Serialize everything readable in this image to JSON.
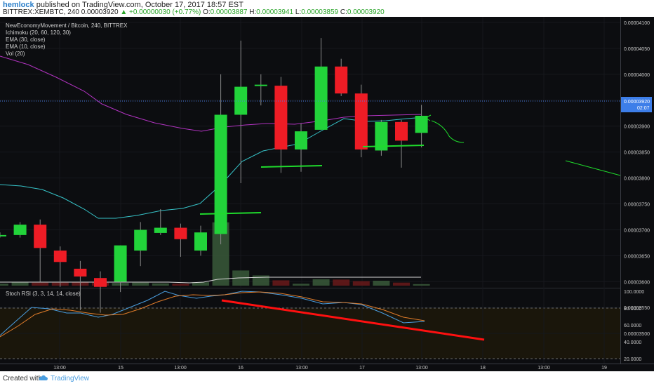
{
  "header": {
    "author": "hemlock",
    "published": "published on TradingView.com, October 17, 2017 18:57 EST",
    "symbol": "BITTREX:XEMBTC, 240",
    "price": "0.00003920",
    "change": "▲ +0.00000030 (+0.77%)",
    "o_label": "O:",
    "o_value": "0.00003887",
    "h_label": "H:",
    "h_value": "0.00003941",
    "l_label": "L:",
    "l_value": "0.00003859",
    "c_label": "C:",
    "c_value": "0.00003920"
  },
  "legend": {
    "title": "NewEconomyMovement / Bitcoin, 240, BITTREX",
    "ichimoku": "Ichimoku (20, 60, 120, 30)",
    "ema30": "EMA (30, close)",
    "ema10": "EMA (10, close)",
    "vol": "Vol (20)"
  },
  "rsi_label": "Stoch RSI (3, 3, 14, 14, close)",
  "footer": {
    "created_with": "Created with",
    "brand": "TradingView"
  },
  "colors": {
    "background": "#0c0d10",
    "up": "#22d33a",
    "down": "#ee1c25",
    "ema30": "#b133c0",
    "ema10": "#36c3c8",
    "rsi_k": "#4a9ee0",
    "rsi_d": "#e07c2a",
    "drawing_green": "#1fdb2c",
    "drawing_red": "#ff1010"
  },
  "chart_data": {
    "type": "candlestick",
    "price_axis": {
      "ticks": [
        "0.00004100",
        "0.00004050",
        "0.00004000",
        "0.00003950",
        "0.00003900",
        "0.00003850",
        "0.00003800",
        "0.00003750",
        "0.00003700",
        "0.00003650",
        "0.00003600",
        "0.00003550",
        "0.00003500"
      ],
      "last_price_label": "0.00003920",
      "time_to_close_label": "02:07"
    },
    "rsi_axis": {
      "ticks": [
        "100.0000",
        "80.0000",
        "60.0000",
        "40.0000",
        "20.0000"
      ]
    },
    "time_axis": {
      "ticks": [
        "13:00",
        "15",
        "13:00",
        "16",
        "13:00",
        "17",
        "13:00",
        "18",
        "13:00",
        "19"
      ]
    },
    "candles": [
      {
        "o": 3690,
        "c": 3690,
        "h": 3695,
        "l": 3685
      },
      {
        "o": 3690,
        "c": 3710,
        "h": 3715,
        "l": 3685
      },
      {
        "o": 3710,
        "c": 3665,
        "h": 3720,
        "l": 3600
      },
      {
        "o": 3660,
        "c": 3638,
        "h": 3668,
        "l": 3590
      },
      {
        "o": 3625,
        "c": 3610,
        "h": 3640,
        "l": 3545
      },
      {
        "o": 3607,
        "c": 3590,
        "h": 3620,
        "l": 3540
      },
      {
        "o": 3600,
        "c": 3670,
        "h": 3670,
        "l": 3580
      },
      {
        "o": 3660,
        "c": 3700,
        "h": 3715,
        "l": 3630
      },
      {
        "o": 3694,
        "c": 3704,
        "h": 3740,
        "l": 3690
      },
      {
        "o": 3704,
        "c": 3682,
        "h": 3712,
        "l": 3648
      },
      {
        "o": 3660,
        "c": 3695,
        "h": 3708,
        "l": 3650
      },
      {
        "o": 3692,
        "c": 3922,
        "h": 4000,
        "l": 3672
      },
      {
        "o": 3922,
        "c": 3976,
        "h": 4065,
        "l": 3790
      },
      {
        "o": 3978,
        "c": 3980,
        "h": 4000,
        "l": 3940
      },
      {
        "o": 3978,
        "c": 3855,
        "h": 3995,
        "l": 3810
      },
      {
        "o": 3855,
        "c": 3890,
        "h": 3905,
        "l": 3812
      },
      {
        "o": 3893,
        "c": 4015,
        "h": 4070,
        "l": 3893
      },
      {
        "o": 4015,
        "c": 3963,
        "h": 4030,
        "l": 3958
      },
      {
        "o": 3963,
        "c": 3855,
        "h": 3980,
        "l": 3840
      },
      {
        "o": 3853,
        "c": 3908,
        "h": 3912,
        "l": 3843
      },
      {
        "o": 3908,
        "c": 3872,
        "h": 3912,
        "l": 3820
      },
      {
        "o": 3887,
        "c": 3920,
        "h": 3941,
        "l": 3859
      }
    ],
    "volume": [
      0.5,
      1.0,
      0.8,
      0.8,
      0.9,
      0.8,
      0.7,
      0.8,
      0.6,
      0.5,
      0.9,
      16.7,
      4.0,
      2.7,
      1.4,
      0.5,
      1.7,
      1.6,
      1.2,
      1.3,
      0.8,
      0.4
    ]
  }
}
